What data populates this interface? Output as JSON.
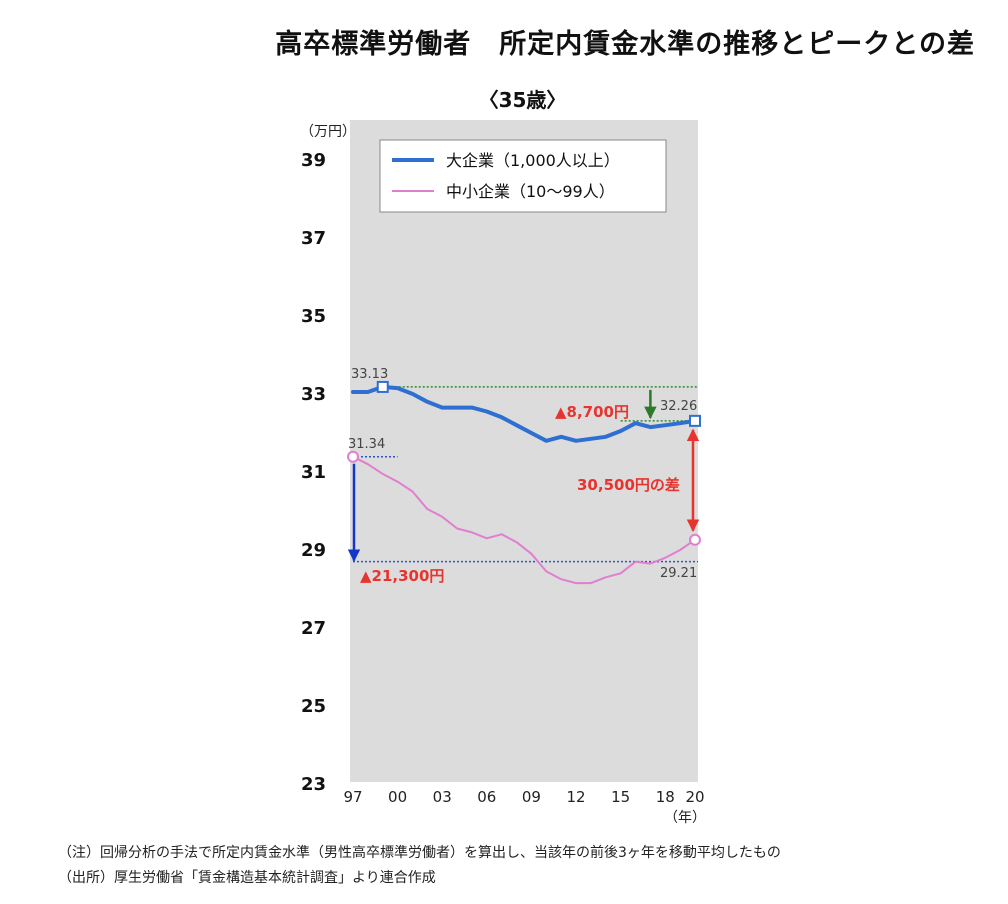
{
  "page": {
    "title": "高卒標準労働者　所定内賃金水準の推移とピークとの差",
    "subtitle": "〈35歳〉",
    "notes": [
      "（注）回帰分析の手法で所定内賃金水準（男性高卒標準労働者）を算出し、当該年の前後3ヶ年を移動平均したもの",
      "（出所）厚生労働省「賃金構造基本統計調査」より連合作成"
    ]
  },
  "chart_data": {
    "type": "line",
    "y_unit": "（万円）",
    "x_unit": "（年）",
    "ylim": [
      23,
      40
    ],
    "xlim": [
      1997,
      2020
    ],
    "y_ticks": [
      23,
      25,
      27,
      29,
      31,
      33,
      35,
      37,
      39
    ],
    "x_ticks": [
      {
        "year": 1997,
        "label": "97"
      },
      {
        "year": 2000,
        "label": "00"
      },
      {
        "year": 2003,
        "label": "03"
      },
      {
        "year": 2006,
        "label": "06"
      },
      {
        "year": 2009,
        "label": "09"
      },
      {
        "year": 2012,
        "label": "12"
      },
      {
        "year": 2015,
        "label": "15"
      },
      {
        "year": 2018,
        "label": "18"
      },
      {
        "year": 2020,
        "label": "20"
      }
    ],
    "grid": false,
    "legend_position": "top",
    "x": [
      1997,
      1998,
      1999,
      2000,
      2001,
      2002,
      2003,
      2004,
      2005,
      2006,
      2007,
      2008,
      2009,
      2010,
      2011,
      2012,
      2013,
      2014,
      2015,
      2016,
      2017,
      2018,
      2019,
      2020
    ],
    "series": [
      {
        "name": "大企業（1,000人以上）",
        "color": "#2f6fd1",
        "values": [
          33.0,
          33.0,
          33.13,
          33.1,
          32.95,
          32.75,
          32.6,
          32.6,
          32.6,
          32.5,
          32.35,
          32.15,
          31.95,
          31.75,
          31.85,
          31.75,
          31.8,
          31.85,
          32.0,
          32.2,
          32.1,
          32.15,
          32.2,
          32.26
        ]
      },
      {
        "name": "中小企業（10〜99人）",
        "color": "#e07fd0",
        "values": [
          31.34,
          31.15,
          30.9,
          30.7,
          30.45,
          30.0,
          29.8,
          29.5,
          29.4,
          29.25,
          29.35,
          29.15,
          28.85,
          28.4,
          28.2,
          28.1,
          28.1,
          28.25,
          28.35,
          28.65,
          28.6,
          28.75,
          28.95,
          29.21
        ]
      }
    ],
    "annotations": {
      "large_peak_label": "33.13",
      "large_end_label": "32.26",
      "small_peak_label": "31.34",
      "small_end_label": "29.21",
      "large_drop_label": "▲8,700円",
      "small_drop_label": "▲21,300円",
      "gap_label": "30,500円の差",
      "large_peak_year": 1999,
      "large_peak_value": 33.13,
      "large_end_value": 32.26,
      "small_peak_year": 1997,
      "small_peak_value": 31.34,
      "small_drop_value": 28.65,
      "large_arrow_year": 2017,
      "gap_arrow_year": 2020
    },
    "colors": {
      "plot_bg": "#dcdcdc",
      "large_ref_line": "#2e8b2e",
      "small_ref_line": "#2f54c4",
      "drop_arrow_large": "#2a7a2a",
      "drop_arrow_small": "#1537c9",
      "gap_arrow": "#e8342f",
      "annotation_text": "#e8342f"
    }
  }
}
